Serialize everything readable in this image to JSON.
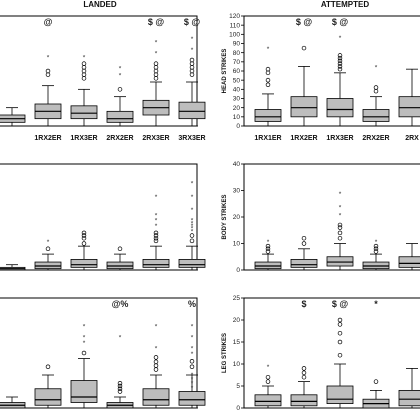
{
  "columns": [
    "LANDED",
    "ATTEMPTED"
  ],
  "row_labels": [
    "HEAD STRIKES",
    "BODY STRIKES",
    "LEG STRIKES"
  ],
  "chart_data": [
    {
      "type": "box",
      "column": "LANDED",
      "row": 0,
      "ylabel": "",
      "categories": [
        "",
        "1RX2ER",
        "1RX3ER",
        "2RX2ER",
        "2RX3ER",
        "3RX3ER"
      ],
      "yticks": [],
      "ylim": [
        0,
        30
      ],
      "boxes": [
        {
          "q1": 1,
          "median": 2,
          "q3": 3,
          "whislo": 0,
          "whishi": 5,
          "outliers": [],
          "extremes": []
        },
        {
          "q1": 2,
          "median": 4,
          "q3": 6,
          "whislo": 0,
          "whishi": 11,
          "outliers": [
            14,
            15
          ],
          "extremes": [
            19
          ]
        },
        {
          "q1": 2,
          "median": 3.5,
          "q3": 5.5,
          "whislo": 0,
          "whishi": 10,
          "outliers": [
            13,
            14,
            15,
            16,
            17
          ],
          "extremes": [
            19
          ]
        },
        {
          "q1": 1,
          "median": 2,
          "q3": 4,
          "whislo": 0,
          "whishi": 8,
          "outliers": [
            10
          ],
          "extremes": [
            14,
            16
          ]
        },
        {
          "q1": 3,
          "median": 5,
          "q3": 7,
          "whislo": 0,
          "whishi": 12,
          "outliers": [
            13,
            14,
            15,
            16,
            17
          ],
          "extremes": [
            20,
            23
          ]
        },
        {
          "q1": 2,
          "median": 4,
          "q3": 6.5,
          "whislo": 0,
          "whishi": 12,
          "outliers": [
            14,
            15,
            16,
            17,
            18
          ],
          "extremes": [
            21,
            24
          ]
        }
      ],
      "annotations": [
        "",
        "@",
        "",
        "",
        "$ @",
        "$ @"
      ]
    },
    {
      "type": "box",
      "column": "LANDED",
      "row": 1,
      "ylabel": "",
      "categories": [
        "",
        "",
        "",
        "",
        "",
        ""
      ],
      "yticks": [],
      "ylim": [
        0,
        40
      ],
      "boxes": [
        {
          "q1": 0,
          "median": 0.5,
          "q3": 1,
          "whislo": 0,
          "whishi": 2,
          "outliers": [],
          "extremes": []
        },
        {
          "q1": 0.5,
          "median": 1.5,
          "q3": 3,
          "whislo": 0,
          "whishi": 6,
          "outliers": [
            8
          ],
          "extremes": [
            11
          ]
        },
        {
          "q1": 1,
          "median": 2,
          "q3": 4,
          "whislo": 0,
          "whishi": 9,
          "outliers": [
            10,
            12,
            13,
            14
          ],
          "extremes": []
        },
        {
          "q1": 0.5,
          "median": 1.5,
          "q3": 3,
          "whislo": 0,
          "whishi": 6,
          "outliers": [
            8
          ],
          "extremes": []
        },
        {
          "q1": 1,
          "median": 2,
          "q3": 4,
          "whislo": 0,
          "whishi": 9,
          "outliers": [
            11,
            12,
            13,
            14
          ],
          "extremes": [
            17,
            19,
            21,
            28
          ]
        },
        {
          "q1": 1,
          "median": 2,
          "q3": 4,
          "whislo": 0,
          "whishi": 9,
          "outliers": [
            11,
            13
          ],
          "extremes": [
            15,
            16,
            17,
            18,
            19,
            23,
            28,
            33
          ]
        }
      ],
      "annotations": [
        "",
        "",
        "",
        "",
        "",
        ""
      ]
    },
    {
      "type": "box",
      "column": "LANDED",
      "row": 2,
      "ylabel": "",
      "categories": [
        "",
        "",
        "",
        "",
        "",
        ""
      ],
      "yticks": [],
      "ylim": [
        0,
        20
      ],
      "boxes": [
        {
          "q1": 0,
          "median": 0.5,
          "q3": 1,
          "whislo": 0,
          "whishi": 2,
          "outliers": [],
          "extremes": []
        },
        {
          "q1": 0.5,
          "median": 1.5,
          "q3": 3.5,
          "whislo": 0,
          "whishi": 6,
          "outliers": [
            7.5
          ],
          "extremes": []
        },
        {
          "q1": 1,
          "median": 2,
          "q3": 5,
          "whislo": 0,
          "whishi": 9,
          "outliers": [
            10
          ],
          "extremes": [
            12,
            13,
            15
          ]
        },
        {
          "q1": 0,
          "median": 0.5,
          "q3": 1,
          "whislo": 0,
          "whishi": 2,
          "outliers": [
            3,
            3.5,
            4,
            4.5
          ],
          "extremes": [
            13
          ]
        },
        {
          "q1": 0.5,
          "median": 1.5,
          "q3": 3.5,
          "whislo": 0,
          "whishi": 6,
          "outliers": [
            7,
            7.7,
            8.4,
            9.2
          ],
          "extremes": [
            11,
            15
          ]
        },
        {
          "q1": 0.5,
          "median": 1.5,
          "q3": 3,
          "whislo": 0,
          "whishi": 6,
          "outliers": [
            7.5,
            8.5
          ],
          "extremes": [
            3.8,
            4.6,
            5.4,
            6.2,
            10,
            11,
            13,
            15
          ]
        }
      ],
      "annotations": [
        "",
        "",
        "",
        "@%",
        "",
        "%"
      ]
    },
    {
      "type": "box",
      "column": "ATTEMPTED",
      "row": 0,
      "ylabel": "HEAD STRIKES",
      "categories": [
        "1RX1ER",
        "1RX2ER",
        "1RX3ER",
        "2RX2ER",
        "2RX"
      ],
      "yticks": [
        0,
        10,
        20,
        30,
        40,
        50,
        60,
        70,
        80,
        90,
        100,
        110,
        120
      ],
      "ylim": [
        0,
        120
      ],
      "boxes": [
        {
          "q1": 5,
          "median": 10,
          "q3": 18,
          "whislo": 0,
          "whishi": 35,
          "outliers": [
            45,
            50,
            58,
            62
          ],
          "extremes": [
            85
          ]
        },
        {
          "q1": 10,
          "median": 20,
          "q3": 32,
          "whislo": 0,
          "whishi": 65,
          "outliers": [
            85
          ],
          "extremes": []
        },
        {
          "q1": 10,
          "median": 18,
          "q3": 30,
          "whislo": 0,
          "whishi": 58,
          "outliers": [
            62,
            65,
            68,
            71,
            74,
            77
          ],
          "extremes": [
            97
          ]
        },
        {
          "q1": 5,
          "median": 10,
          "q3": 18,
          "whislo": 0,
          "whishi": 32,
          "outliers": [
            38,
            42
          ],
          "extremes": [
            65
          ]
        },
        {
          "q1": 10,
          "median": 20,
          "q3": 32,
          "whislo": 0,
          "whishi": 62,
          "outliers": [],
          "extremes": []
        }
      ],
      "annotations": [
        "",
        "$ @",
        "$ @",
        "",
        ""
      ]
    },
    {
      "type": "box",
      "column": "ATTEMPTED",
      "row": 1,
      "ylabel": "BODY STRIKES",
      "categories": [
        "",
        "",
        "",
        "",
        ""
      ],
      "yticks": [
        0,
        10,
        20,
        30,
        40
      ],
      "ylim": [
        0,
        40
      ],
      "boxes": [
        {
          "q1": 0.5,
          "median": 1.5,
          "q3": 3,
          "whislo": 0,
          "whishi": 6,
          "outliers": [
            7,
            8,
            9
          ],
          "extremes": [
            11
          ]
        },
        {
          "q1": 1,
          "median": 2,
          "q3": 4,
          "whislo": 0,
          "whishi": 8,
          "outliers": [
            10,
            12
          ],
          "extremes": []
        },
        {
          "q1": 1.5,
          "median": 3,
          "q3": 5,
          "whislo": 0,
          "whishi": 10,
          "outliers": [
            12,
            14,
            16,
            17
          ],
          "extremes": [
            21,
            24,
            29
          ]
        },
        {
          "q1": 0.5,
          "median": 1.5,
          "q3": 3,
          "whislo": 0,
          "whishi": 6,
          "outliers": [
            7,
            8,
            9
          ],
          "extremes": [
            11
          ]
        },
        {
          "q1": 1,
          "median": 2.5,
          "q3": 5,
          "whislo": 0,
          "whishi": 10,
          "outliers": [],
          "extremes": []
        }
      ],
      "annotations": [
        "",
        "",
        "",
        "",
        ""
      ]
    },
    {
      "type": "box",
      "column": "ATTEMPTED",
      "row": 2,
      "ylabel": "LEG STRIKES",
      "categories": [
        "",
        "",
        "",
        "",
        ""
      ],
      "yticks": [
        0,
        5,
        10,
        15,
        20,
        25
      ],
      "ylim": [
        0,
        25
      ],
      "boxes": [
        {
          "q1": 0.5,
          "median": 1.5,
          "q3": 3,
          "whislo": 0,
          "whishi": 5,
          "outliers": [
            6,
            7
          ],
          "extremes": [
            9.5
          ]
        },
        {
          "q1": 0.5,
          "median": 1.5,
          "q3": 3,
          "whislo": 0,
          "whishi": 6,
          "outliers": [
            7,
            8,
            9
          ],
          "extremes": []
        },
        {
          "q1": 1,
          "median": 2,
          "q3": 5,
          "whislo": 0,
          "whishi": 10,
          "outliers": [
            12,
            15,
            17,
            19,
            20
          ],
          "extremes": []
        },
        {
          "q1": 0,
          "median": 1,
          "q3": 2,
          "whislo": 0,
          "whishi": 4,
          "outliers": [
            6
          ],
          "extremes": []
        },
        {
          "q1": 0.5,
          "median": 2,
          "q3": 4,
          "whislo": 0,
          "whishi": 9,
          "outliers": [],
          "extremes": []
        }
      ],
      "annotations": [
        "",
        "$",
        "$ @",
        "*",
        ""
      ]
    }
  ]
}
